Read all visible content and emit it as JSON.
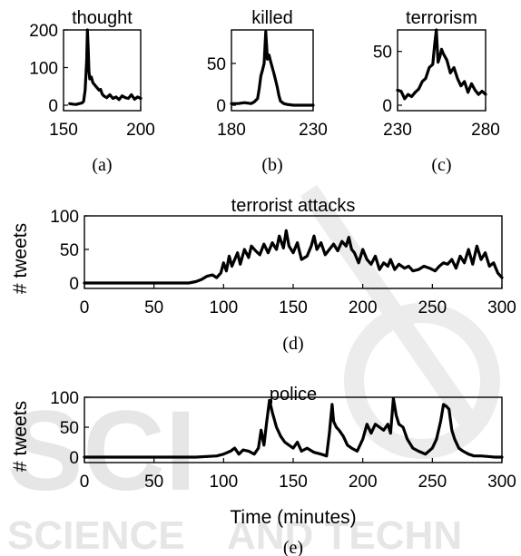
{
  "watermark": {
    "text_1": "SCIENCE",
    "text_2": "AND TECHN"
  },
  "chart_data": [
    {
      "type": "line",
      "title": "thought",
      "caption": "(a)",
      "xlim": [
        150,
        200
      ],
      "ylim": [
        0,
        200
      ],
      "xticks": [
        150,
        200
      ],
      "yticks": [
        0,
        100,
        200
      ],
      "xtick_labels": [
        "150",
        "200"
      ],
      "ytick_labels": [
        "0",
        "100",
        "200"
      ],
      "series": [
        {
          "x": [
            154,
            156,
            158,
            160,
            162,
            163,
            164,
            165,
            165.5,
            166,
            166.5,
            167,
            168,
            169,
            170,
            171,
            172,
            173,
            174,
            175,
            176,
            178,
            180,
            182,
            184,
            186,
            188,
            190,
            192,
            194,
            196,
            198,
            200
          ],
          "values": [
            4,
            3,
            2,
            4,
            6,
            10,
            40,
            120,
            200,
            150,
            90,
            70,
            75,
            60,
            55,
            50,
            45,
            40,
            42,
            30,
            25,
            20,
            28,
            18,
            22,
            15,
            25,
            20,
            18,
            28,
            16,
            22,
            18
          ]
        }
      ]
    },
    {
      "type": "line",
      "title": "killed",
      "caption": "(b)",
      "xlim": [
        180,
        230
      ],
      "ylim": [
        0,
        90
      ],
      "xticks": [
        180,
        230
      ],
      "yticks": [
        0,
        50
      ],
      "xtick_labels": [
        "180",
        "230"
      ],
      "ytick_labels": [
        "0",
        "50"
      ],
      "series": [
        {
          "x": [
            180,
            184,
            188,
            192,
            194,
            196,
            197,
            198,
            199,
            200,
            201,
            202,
            203,
            204,
            205,
            206,
            207,
            208,
            209,
            210,
            212,
            214,
            218,
            222,
            226,
            230
          ],
          "values": [
            2,
            2,
            3,
            2,
            4,
            8,
            20,
            35,
            42,
            50,
            88,
            55,
            60,
            52,
            45,
            38,
            30,
            22,
            12,
            5,
            2,
            1,
            0,
            0,
            0,
            0
          ]
        }
      ]
    },
    {
      "type": "line",
      "title": "terrorism",
      "caption": "(c)",
      "xlim": [
        230,
        280
      ],
      "ylim": [
        0,
        70
      ],
      "xticks": [
        230,
        280
      ],
      "yticks": [
        0,
        50
      ],
      "xtick_labels": [
        "230",
        "280"
      ],
      "ytick_labels": [
        "0",
        "50"
      ],
      "series": [
        {
          "x": [
            230,
            232,
            234,
            236,
            238,
            240,
            242,
            244,
            246,
            248,
            250,
            251,
            252,
            253,
            254,
            255,
            256,
            258,
            260,
            262,
            264,
            266,
            268,
            270,
            272,
            274,
            276,
            278,
            280
          ],
          "values": [
            14,
            13,
            6,
            10,
            8,
            12,
            15,
            22,
            25,
            35,
            38,
            55,
            70,
            40,
            45,
            52,
            48,
            42,
            30,
            35,
            25,
            18,
            22,
            12,
            20,
            14,
            10,
            13,
            10
          ]
        }
      ]
    },
    {
      "type": "line",
      "title": "terrorist attacks",
      "caption": "(d)",
      "ylabel": "# tweets",
      "xlim": [
        0,
        300
      ],
      "ylim": [
        0,
        100
      ],
      "xticks": [
        0,
        50,
        100,
        150,
        200,
        250,
        300
      ],
      "yticks": [
        0,
        50,
        100
      ],
      "xtick_labels": [
        "0",
        "50",
        "100",
        "150",
        "200",
        "250",
        "300"
      ],
      "ytick_labels": [
        "0",
        "50",
        "100"
      ],
      "series": [
        {
          "x": [
            0,
            20,
            40,
            60,
            75,
            80,
            84,
            88,
            92,
            95,
            98,
            100,
            102,
            104,
            106,
            108,
            110,
            112,
            115,
            118,
            120,
            123,
            126,
            129,
            132,
            135,
            138,
            140,
            143,
            145,
            147,
            150,
            153,
            156,
            160,
            163,
            165,
            167,
            170,
            173,
            176,
            179,
            182,
            185,
            188,
            190,
            192,
            194,
            197,
            200,
            203,
            206,
            209,
            212,
            215,
            218,
            220,
            223,
            226,
            230,
            233,
            236,
            240,
            244,
            248,
            252,
            255,
            258,
            261,
            264,
            267,
            270,
            273,
            276,
            279,
            282,
            285,
            288,
            291,
            294,
            297,
            300
          ],
          "values": [
            0,
            0,
            0,
            0,
            0,
            2,
            5,
            10,
            12,
            8,
            15,
            30,
            18,
            40,
            25,
            35,
            45,
            28,
            50,
            38,
            55,
            48,
            42,
            58,
            45,
            60,
            50,
            70,
            52,
            78,
            55,
            45,
            60,
            35,
            40,
            55,
            70,
            50,
            60,
            42,
            50,
            58,
            48,
            62,
            55,
            68,
            50,
            45,
            30,
            50,
            35,
            28,
            40,
            20,
            30,
            25,
            35,
            20,
            28,
            22,
            25,
            18,
            20,
            25,
            22,
            18,
            25,
            30,
            28,
            35,
            22,
            40,
            30,
            50,
            28,
            55,
            35,
            45,
            25,
            30,
            15,
            8
          ]
        }
      ]
    },
    {
      "type": "line",
      "title": "police",
      "caption": "(e)",
      "xlabel": "Time (minutes)",
      "ylabel": "# tweets",
      "xlim": [
        0,
        300
      ],
      "ylim": [
        0,
        100
      ],
      "xticks": [
        0,
        50,
        100,
        150,
        200,
        250,
        300
      ],
      "yticks": [
        0,
        50,
        100
      ],
      "xtick_labels": [
        "0",
        "50",
        "100",
        "150",
        "200",
        "250",
        "300"
      ],
      "ytick_labels": [
        "0",
        "50",
        "100"
      ],
      "series": [
        {
          "x": [
            0,
            40,
            80,
            95,
            100,
            105,
            108,
            111,
            114,
            118,
            122,
            125,
            127,
            129,
            131,
            133,
            135,
            138,
            141,
            144,
            147,
            150,
            153,
            156,
            160,
            165,
            170,
            174,
            176,
            178,
            179,
            181,
            183,
            186,
            189,
            192,
            196,
            200,
            203,
            206,
            209,
            212,
            215,
            218,
            220,
            222,
            224,
            226,
            229,
            232,
            236,
            240,
            245,
            250,
            253,
            256,
            258,
            260,
            262,
            264,
            266,
            269,
            272,
            276,
            280,
            285,
            290,
            295,
            300
          ],
          "values": [
            0,
            0,
            0,
            2,
            5,
            10,
            15,
            5,
            12,
            10,
            5,
            15,
            45,
            20,
            60,
            95,
            75,
            50,
            35,
            25,
            20,
            15,
            25,
            10,
            15,
            8,
            5,
            2,
            40,
            88,
            60,
            50,
            45,
            35,
            20,
            15,
            10,
            30,
            55,
            40,
            55,
            50,
            45,
            55,
            40,
            98,
            70,
            55,
            50,
            30,
            15,
            10,
            5,
            15,
            30,
            60,
            88,
            85,
            80,
            45,
            30,
            15,
            10,
            5,
            2,
            2,
            1,
            0,
            0
          ]
        }
      ]
    }
  ]
}
